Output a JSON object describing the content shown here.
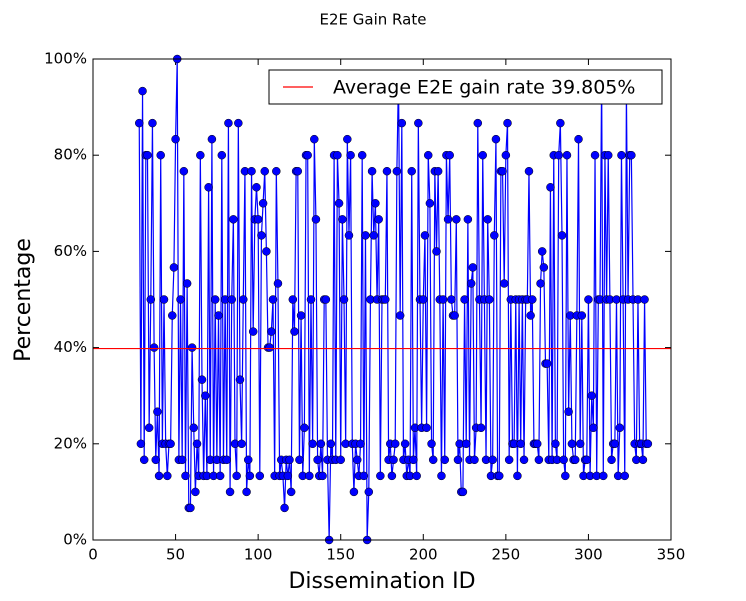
{
  "chart_data": {
    "type": "line",
    "title": "E2E Gain Rate",
    "x_label": "Dissemination ID",
    "y_label": "Percentage",
    "xlim": [
      0,
      350
    ],
    "xticks": [
      0,
      50,
      100,
      150,
      200,
      250,
      300,
      350
    ],
    "ylim": [
      0,
      100
    ],
    "yticks": [
      {
        "value": 0,
        "label": "0%"
      },
      {
        "value": 20,
        "label": "20%"
      },
      {
        "value": 40,
        "label": "40%"
      },
      {
        "value": 60,
        "label": "60%"
      },
      {
        "value": 80,
        "label": "80%"
      },
      {
        "value": 100,
        "label": "100%"
      }
    ],
    "legend_position": "upper right",
    "average": {
      "name": "Average E2E gain rate 39.805%",
      "value": 39.805,
      "color": "#ff0000"
    },
    "series": [
      {
        "color": "#0000ff",
        "x": [
          28,
          29,
          30,
          31,
          32,
          33,
          34,
          35,
          36,
          37,
          38,
          39,
          40,
          41,
          42,
          43,
          44,
          45,
          46,
          47,
          48,
          49,
          50,
          51,
          52,
          53,
          54,
          55,
          56,
          57,
          58,
          59,
          60,
          61,
          62,
          63,
          64,
          65,
          66,
          67,
          68,
          69,
          70,
          71,
          72,
          73,
          74,
          75,
          76,
          77,
          78,
          79,
          80,
          81,
          82,
          83,
          84,
          85,
          86,
          87,
          88,
          89,
          90,
          91,
          92,
          93,
          94,
          95,
          96,
          97,
          98,
          99,
          100,
          101,
          102,
          103,
          104,
          105,
          106,
          107,
          108,
          109,
          110,
          111,
          112,
          113,
          114,
          115,
          116,
          117,
          118,
          119,
          120,
          121,
          122,
          123,
          124,
          125,
          126,
          127,
          128,
          129,
          130,
          131,
          132,
          133,
          134,
          135,
          136,
          137,
          138,
          139,
          140,
          141,
          142,
          143,
          144,
          145,
          146,
          147,
          148,
          149,
          150,
          151,
          152,
          153,
          154,
          155,
          156,
          157,
          158,
          159,
          160,
          161,
          162,
          163,
          164,
          165,
          166,
          167,
          168,
          169,
          170,
          171,
          172,
          173,
          174,
          175,
          176,
          177,
          178,
          179,
          180,
          181,
          182,
          183,
          184,
          185,
          186,
          187,
          188,
          189,
          190,
          191,
          192,
          193,
          194,
          195,
          196,
          197,
          198,
          199,
          200,
          201,
          202,
          203,
          204,
          205,
          206,
          207,
          208,
          209,
          210,
          211,
          212,
          213,
          214,
          215,
          216,
          217,
          218,
          219,
          220,
          221,
          222,
          223,
          224,
          225,
          226,
          227,
          228,
          229,
          230,
          231,
          232,
          233,
          234,
          235,
          236,
          237,
          238,
          239,
          240,
          241,
          242,
          243,
          244,
          245,
          246,
          247,
          248,
          249,
          250,
          251,
          252,
          253,
          254,
          255,
          256,
          257,
          258,
          259,
          260,
          261,
          262,
          263,
          264,
          265,
          266,
          267,
          268,
          269,
          270,
          271,
          272,
          273,
          274,
          275,
          276,
          277,
          278,
          279,
          280,
          281,
          282,
          283,
          284,
          285,
          286,
          287,
          288,
          289,
          290,
          291,
          292,
          293,
          294,
          295,
          296,
          297,
          298,
          299,
          300,
          301,
          302,
          303,
          304,
          305,
          306,
          307,
          308,
          309,
          310,
          311,
          312,
          313,
          314,
          315,
          316,
          317,
          318,
          319,
          320,
          321,
          322,
          323,
          324,
          325,
          326,
          327,
          328,
          329,
          330,
          331,
          332,
          333,
          334,
          335,
          336
        ],
        "values": [
          86.67,
          20,
          93.33,
          16.67,
          80,
          80,
          23.33,
          50,
          86.67,
          40,
          16.67,
          26.67,
          13.33,
          80,
          20,
          50,
          20,
          13.33,
          20,
          20,
          46.67,
          56.67,
          83.33,
          100,
          16.67,
          50,
          16.67,
          76.67,
          13.33,
          53.33,
          6.67,
          6.67,
          40,
          23.33,
          10,
          20,
          13.33,
          80,
          33.33,
          13.33,
          30,
          13.33,
          73.33,
          16.67,
          83.33,
          13.33,
          50,
          16.67,
          46.67,
          13.33,
          80,
          16.67,
          50,
          16.67,
          86.67,
          10,
          50,
          66.67,
          20,
          13.33,
          86.67,
          33.33,
          20,
          50,
          76.67,
          10,
          16.67,
          13.33,
          76.67,
          43.33,
          66.67,
          73.33,
          66.67,
          13.33,
          63.33,
          70,
          76.67,
          60,
          40,
          40,
          43.33,
          50,
          13.33,
          76.67,
          53.33,
          13.33,
          16.67,
          13.33,
          6.67,
          16.67,
          13.33,
          16.67,
          10,
          50,
          43.33,
          76.67,
          76.67,
          16.67,
          46.67,
          13.33,
          23.33,
          80,
          80,
          13.33,
          50,
          20,
          83.33,
          66.67,
          16.67,
          13.33,
          20,
          13.33,
          50,
          50,
          16.67,
          0,
          20,
          16.67,
          80,
          16.67,
          80,
          70,
          16.67,
          66.67,
          50,
          20,
          83.33,
          63.33,
          80,
          20,
          10,
          20,
          16.67,
          13.33,
          20,
          80,
          13.33,
          63.33,
          0,
          10,
          50,
          76.67,
          63.33,
          70,
          50,
          66.67,
          13.33,
          50,
          50,
          50,
          76.67,
          16.67,
          20,
          13.33,
          16.67,
          20,
          76.67,
          96.67,
          46.67,
          86.67,
          16.67,
          20,
          13.33,
          16.67,
          13.33,
          76.67,
          16.67,
          23.33,
          13.33,
          86.67,
          50,
          23.33,
          50,
          63.33,
          23.33,
          80,
          70,
          20,
          16.67,
          76.67,
          60,
          76.67,
          50,
          13.33,
          50,
          16.67,
          80,
          66.67,
          80,
          50,
          46.67,
          46.67,
          66.67,
          16.67,
          20,
          10,
          10,
          50,
          20,
          66.67,
          16.67,
          53.33,
          56.67,
          16.67,
          23.33,
          86.67,
          50,
          23.33,
          80,
          50,
          16.67,
          66.67,
          50,
          13.33,
          16.67,
          63.33,
          83.33,
          13.33,
          13.33,
          76.67,
          76.67,
          53.33,
          80,
          86.67,
          16.67,
          50,
          20,
          20,
          50,
          13.33,
          50,
          20,
          50,
          16.67,
          50,
          50,
          76.67,
          46.67,
          50,
          20,
          20,
          20,
          16.67,
          53.33,
          60,
          56.67,
          36.67,
          36.67,
          16.67,
          73.33,
          16.67,
          80,
          20,
          16.67,
          80,
          86.67,
          63.33,
          16.67,
          13.33,
          80,
          26.67,
          46.67,
          20,
          16.67,
          16.67,
          46.67,
          83.33,
          20,
          46.67,
          13.33,
          16.67,
          16.67,
          50,
          13.33,
          30,
          23.33,
          80,
          13.33,
          50,
          50,
          96.67,
          13.33,
          80,
          50,
          80,
          50,
          16.67,
          20,
          20,
          50,
          13.33,
          23.33,
          80,
          50,
          13.33,
          93.33,
          50,
          80,
          80,
          50,
          20,
          16.67,
          50,
          20,
          20,
          16.67,
          50,
          20,
          20
        ]
      }
    ]
  }
}
